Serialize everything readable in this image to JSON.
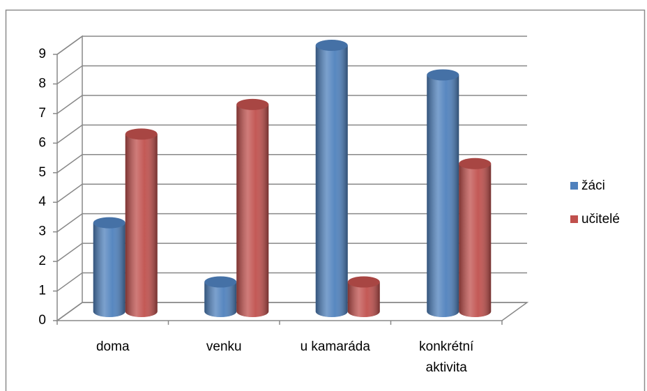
{
  "chart_data": {
    "type": "bar",
    "style": "3d-cylinder",
    "categories": [
      "doma",
      "venku",
      "u kamaráda",
      "konkrétní aktivita"
    ],
    "series": [
      {
        "name": "žáci",
        "color": "#4f81bd",
        "values": [
          3,
          1,
          9,
          8
        ]
      },
      {
        "name": "učitelé",
        "color": "#c0504d",
        "values": [
          6,
          7,
          1,
          5
        ]
      }
    ],
    "ylim": [
      0,
      9
    ],
    "yticks": [
      0,
      1,
      2,
      3,
      4,
      5,
      6,
      7,
      8,
      9
    ],
    "grid": true,
    "legend": "right"
  }
}
